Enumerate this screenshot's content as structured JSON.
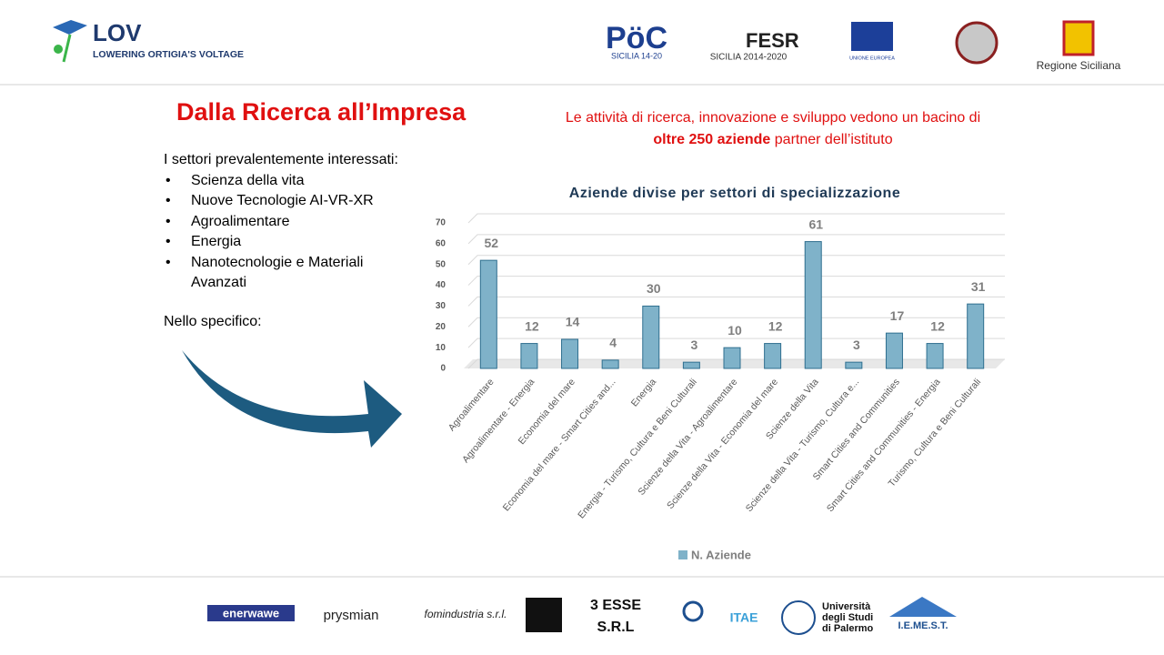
{
  "header": {
    "logo_title": "LOV",
    "logo_subtitle": "LOWERING ORTIGIA'S VOLTAGE",
    "partners": [
      "SICILIA 14-20",
      "FESR",
      "SICILIA 2014-2020",
      "UNIONE EUROPEA",
      "Regione Siciliana"
    ]
  },
  "slide": {
    "title": "Dalla Ricerca all’Impresa",
    "intro": [
      "Le attività di ricerca, innovazione e sviluppo vedono un bacino di",
      "oltre 250 aziende",
      " partner dell’istituto"
    ],
    "list_heading": "I settori prevalentemente interessati:",
    "bullets": [
      "Scienza della vita",
      "Nuove Tecnologie AI-VR-XR",
      "Agroalimentare",
      "Energia",
      "Nanotecnologie e Materiali Avanzati"
    ],
    "specific": "Nello specifico:"
  },
  "chart_data": {
    "type": "bar",
    "title": "Aziende divise per settori di specializzazione",
    "categories": [
      "Agroalimentare",
      "Agroalimentare - Energia",
      "Economia del mare",
      "Economia del mare - Smart Cities and...",
      "Energia",
      "Energia - Turismo, Cultura e Beni Culturali",
      "Scienze della Vita - Agroalimentare",
      "Scienze della Vita - Economia del mare",
      "Scienze della Vita",
      "Scienze della Vita - Turismo, Cultura e...",
      "Smart Cities and Communities",
      "Smart Cities and Communities - Energia",
      "Turismo, Cultura e Beni Culturali"
    ],
    "series": [
      {
        "name": "N. Aziende",
        "color": "#7fb2c9",
        "values": [
          52,
          12,
          14,
          4,
          30,
          3,
          10,
          12,
          61,
          3,
          17,
          12,
          31
        ]
      }
    ],
    "ylim": [
      0,
      70
    ],
    "yticks": [
      0,
      10,
      20,
      30,
      40,
      50,
      60,
      70
    ],
    "grid": true,
    "legend": "bottom"
  },
  "footer": {
    "logos": [
      "enerwawe",
      "prysmian",
      "fomindustria s.r.l.",
      "3 ESSE",
      "S.R.L",
      "Università",
      "degli Studi",
      "di Palermo",
      "I.E.ME.S.T."
    ]
  }
}
